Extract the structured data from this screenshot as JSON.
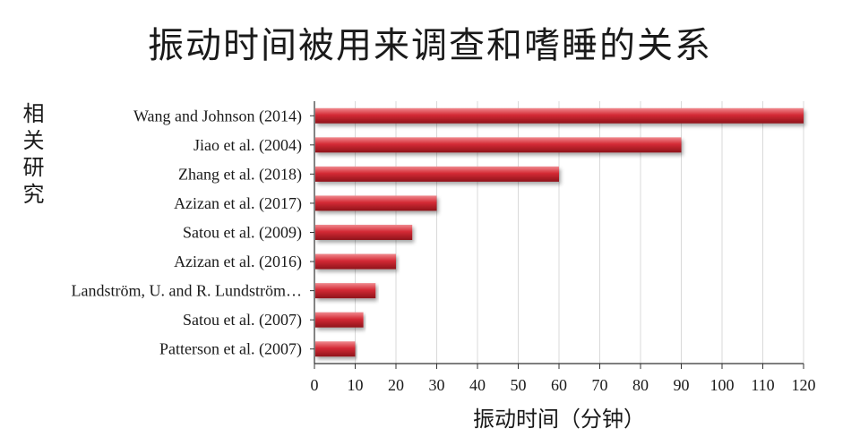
{
  "chart_data": {
    "type": "bar",
    "orientation": "horizontal",
    "title": "振动时间被用来调查和嗜睡的关系",
    "xlabel": "振动时间（分钟）",
    "ylabel": "相关研究",
    "categories": [
      "Wang and Johnson (2014)",
      "Jiao et al. (2004)",
      "Zhang et al. (2018)",
      "Azizan et al. (2017)",
      "Satou et al. (2009)",
      "Azizan et al. (2016)",
      "Landström, U. and R. Lundström…",
      "Satou et al. (2007)",
      "Patterson et al. (2007)"
    ],
    "values": [
      120,
      90,
      60,
      30,
      24,
      20,
      15,
      12,
      10
    ],
    "xlim": [
      0,
      120
    ],
    "xticks": [
      0,
      10,
      20,
      30,
      40,
      50,
      60,
      70,
      80,
      90,
      100,
      110,
      120
    ],
    "grid": "vertical",
    "bar_color": "#d42a35",
    "bar_highlight": "#f08a8f",
    "bar_shadow": "#8f141b"
  }
}
